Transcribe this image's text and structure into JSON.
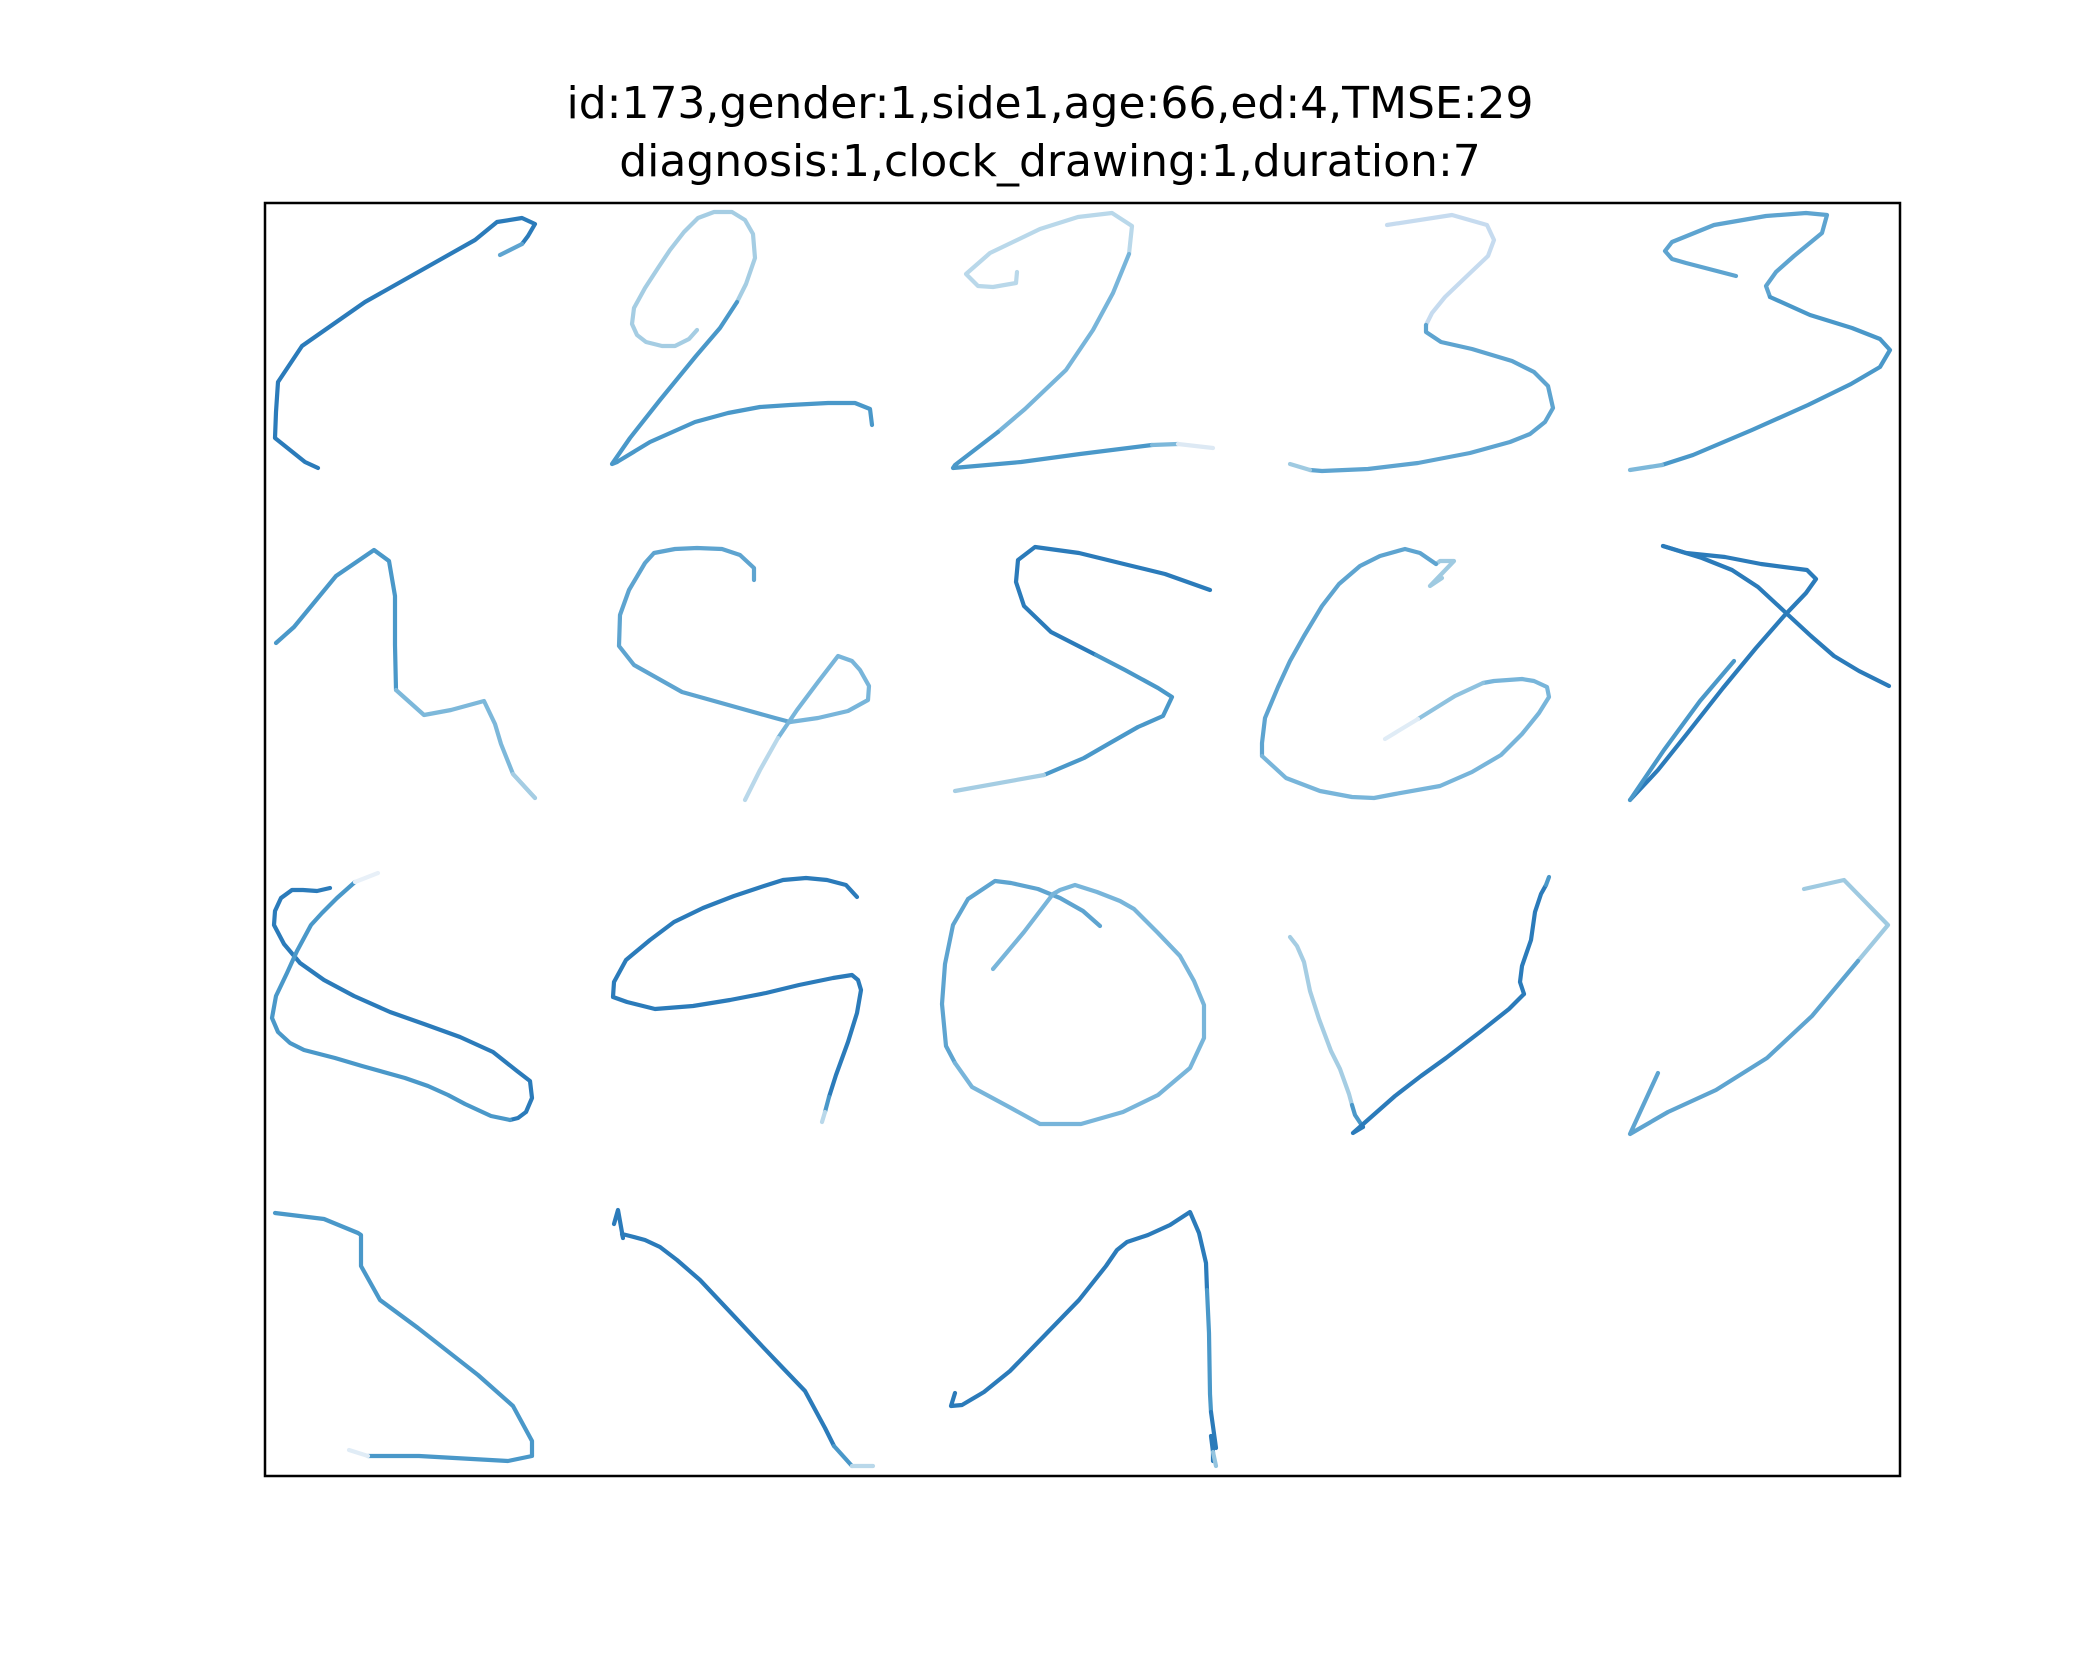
{
  "title": {
    "line1": "id:173,gender:1,side1,age:66,ed:4,TMSE:29",
    "line2": "diagnosis:1,clock_drawing:1,duration:7"
  },
  "colors": {
    "stroke_dark": "#2b7bba",
    "stroke_mid": "#4a98c9",
    "stroke_light": "#94c4df",
    "stroke_pale": "#c6dbef",
    "frame": "#000000"
  }
}
